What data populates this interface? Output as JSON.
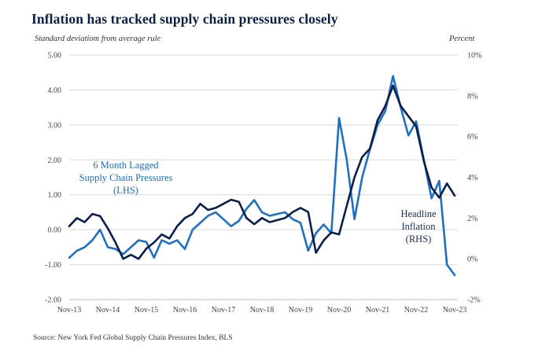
{
  "chart_data": {
    "type": "line",
    "title": "Inflation has tracked supply chain pressures closely",
    "left_axis_label": "Standard deviatiom from average rule",
    "right_axis_label": "Percent",
    "source": "Source: New York Fed Global Supply Chain Pressures Index, BLS",
    "x_tick_labels": [
      "Nov-13",
      "Nov-14",
      "Nov-15",
      "Nov-16",
      "Nov-17",
      "Nov-18",
      "Nov-19",
      "Nov-20",
      "Nov-21",
      "Nov-22",
      "Nov-23"
    ],
    "y_left": {
      "ticks": [
        "5.00",
        "4.00",
        "3.00",
        "2.00",
        "1.00",
        "0.00",
        "-1.00",
        "-2.00"
      ],
      "range": [
        -2,
        5
      ]
    },
    "y_right": {
      "ticks": [
        "10%",
        "8%",
        "6%",
        "4%",
        "2%",
        "0%",
        "-2%"
      ],
      "range": [
        -2,
        10
      ]
    },
    "colors": {
      "supply": "#1f6fc5",
      "inflation": "#0b1f4d",
      "grid": "#d9d9d9",
      "title": "#0b1f45"
    },
    "series": [
      {
        "name": "6 Month Lagged Supply Chain Pressures (LHS)",
        "axis": "left",
        "label_lines": [
          "6 Month Lagged",
          "Supply Chain Pressures",
          "(LHS)"
        ],
        "x": [
          0,
          0.2,
          0.4,
          0.6,
          0.8,
          1,
          1.2,
          1.4,
          1.6,
          1.8,
          2,
          2.2,
          2.4,
          2.6,
          2.8,
          3,
          3.2,
          3.4,
          3.6,
          3.8,
          4,
          4.2,
          4.4,
          4.6,
          4.8,
          5,
          5.2,
          5.4,
          5.6,
          5.8,
          6,
          6.2,
          6.4,
          6.6,
          6.8,
          7,
          7.2,
          7.4,
          7.6,
          7.8,
          8,
          8.2,
          8.4,
          8.6,
          8.8,
          9,
          9.2,
          9.4,
          9.6,
          9.8,
          10
        ],
        "values": [
          -0.8,
          -0.6,
          -0.5,
          -0.3,
          0.0,
          -0.5,
          -0.55,
          -0.7,
          -0.5,
          -0.3,
          -0.35,
          -0.8,
          -0.3,
          -0.4,
          -0.3,
          -0.55,
          0.0,
          0.2,
          0.4,
          0.5,
          0.3,
          0.1,
          0.25,
          0.6,
          0.85,
          0.5,
          0.4,
          0.45,
          0.5,
          0.3,
          0.2,
          -0.6,
          -0.1,
          0.15,
          -0.1,
          3.2,
          2.0,
          0.3,
          1.5,
          2.3,
          3.0,
          3.4,
          4.4,
          3.5,
          2.7,
          3.1,
          2.0,
          0.9,
          1.4,
          -1.0,
          -1.3
        ]
      },
      {
        "name": "Headline Inflation (RHS)",
        "axis": "right",
        "label_lines": [
          "Headline",
          "Inflation",
          "(RHS)"
        ],
        "x": [
          0,
          0.2,
          0.4,
          0.6,
          0.8,
          1,
          1.2,
          1.4,
          1.6,
          1.8,
          2,
          2.2,
          2.4,
          2.6,
          2.8,
          3,
          3.2,
          3.4,
          3.6,
          3.8,
          4,
          4.2,
          4.4,
          4.6,
          4.8,
          5,
          5.2,
          5.4,
          5.6,
          5.8,
          6,
          6.2,
          6.4,
          6.6,
          6.8,
          7,
          7.2,
          7.4,
          7.6,
          7.8,
          8,
          8.2,
          8.4,
          8.6,
          8.8,
          9,
          9.2,
          9.4,
          9.6,
          9.8,
          10
        ],
        "values": [
          1.6,
          2.0,
          1.8,
          2.2,
          2.1,
          1.5,
          0.8,
          0.0,
          0.2,
          0.0,
          0.5,
          0.8,
          1.2,
          1.0,
          1.6,
          2.0,
          2.2,
          2.7,
          2.4,
          2.5,
          2.7,
          2.9,
          2.8,
          2.0,
          1.7,
          2.0,
          1.8,
          1.9,
          2.0,
          2.3,
          2.5,
          2.3,
          0.3,
          0.9,
          1.3,
          1.2,
          2.6,
          4.0,
          5.0,
          5.4,
          6.8,
          7.5,
          8.5,
          7.5,
          7.0,
          6.5,
          4.8,
          3.5,
          3.0,
          3.7,
          3.1
        ]
      }
    ]
  }
}
